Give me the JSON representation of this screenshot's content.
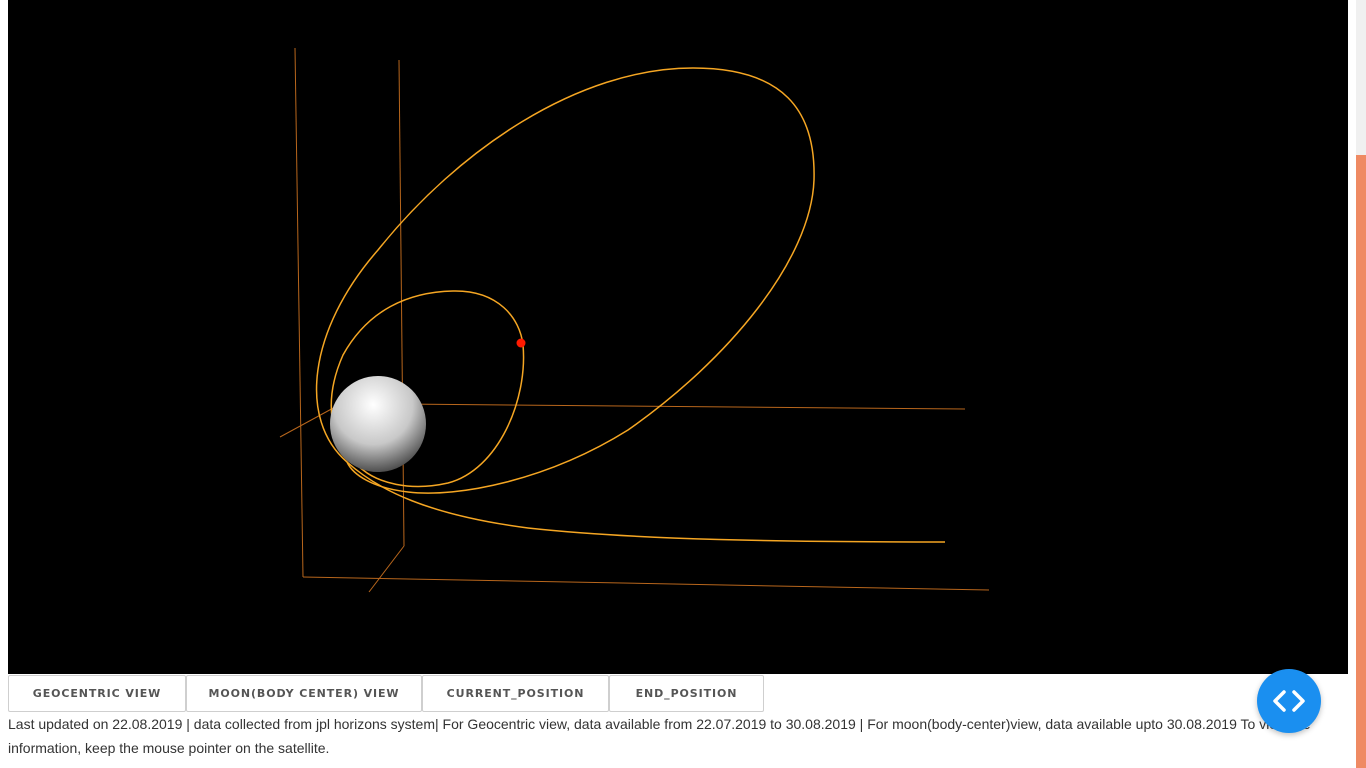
{
  "viewport": {
    "background": "#000000",
    "orbit_color": "#f5a623",
    "axis_color": "#b8661c",
    "satellite_color": "#ff1a00",
    "moon_color": "#ffffff"
  },
  "buttons": {
    "geocentric": "GEOCENTRIC VIEW",
    "moon_view": "MOON(BODY CENTER) VIEW",
    "current_position": "CURRENT_POSITION",
    "end_position": "END_POSITION"
  },
  "info_text": "Last updated on 22.08.2019 | data collected from jpl horizons system| For Geocentric view, data available from 22.07.2019 to 30.08.2019 | For moon(body-center)view, data available upto 30.08.2019 To view the information, keep the mouse pointer on the satellite.",
  "fab": {
    "icon": "code-toggle-icon",
    "color": "#1a8ff0"
  },
  "scrollbar": {
    "thumb_color": "#ef8a63"
  }
}
